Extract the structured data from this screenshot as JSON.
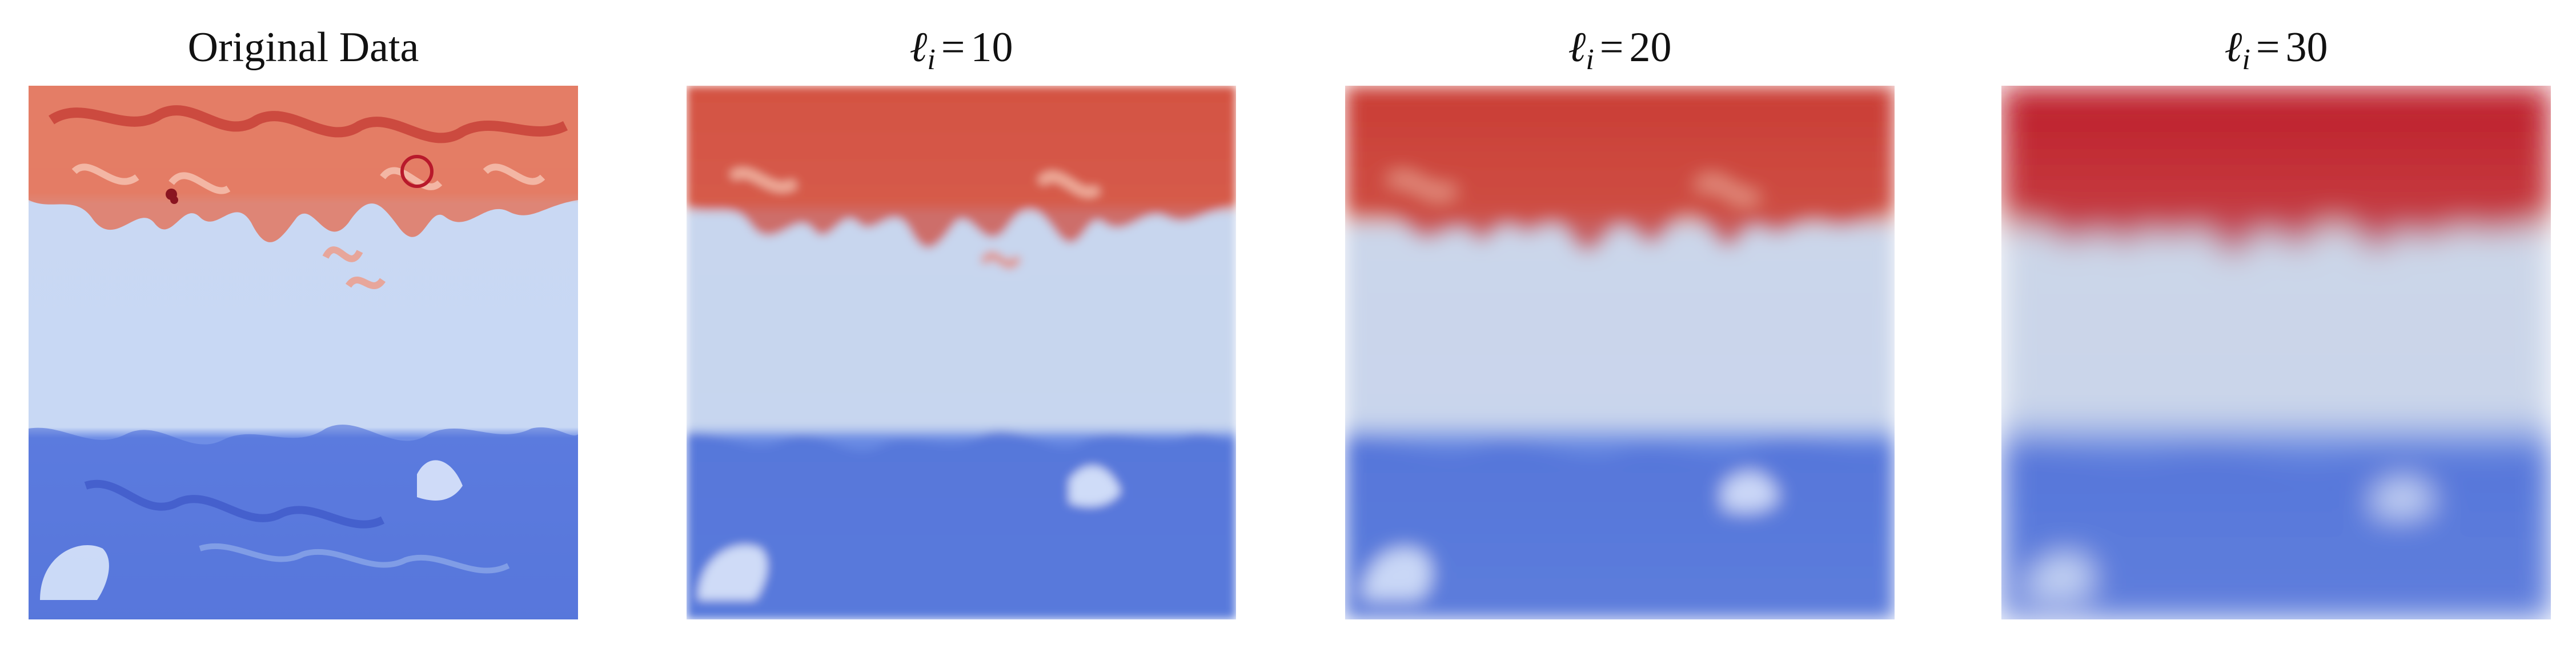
{
  "panels": [
    {
      "title": "Original Data",
      "blur": 0,
      "sat": 1.15
    },
    {
      "title_symbol": "ℓ",
      "title_sub": "i",
      "title_op": "=",
      "title_value": "10",
      "blur": 8,
      "sat": 1.0
    },
    {
      "title_symbol": "ℓ",
      "title_sub": "i",
      "title_op": "=",
      "title_value": "20",
      "blur": 16,
      "sat": 1.0
    },
    {
      "title_symbol": "ℓ",
      "title_sub": "i",
      "title_op": "=",
      "title_value": "30",
      "blur": 26,
      "sat": 1.05
    }
  ],
  "colors": {
    "warm_light": "#f4b19a",
    "warm": "#e07a62",
    "warm_dark": "#b8192b",
    "neutral": "#c9d7ef",
    "cool": "#5d7fe0",
    "cool_dark": "#3b54c4",
    "cool_light": "#a9c1f3"
  }
}
